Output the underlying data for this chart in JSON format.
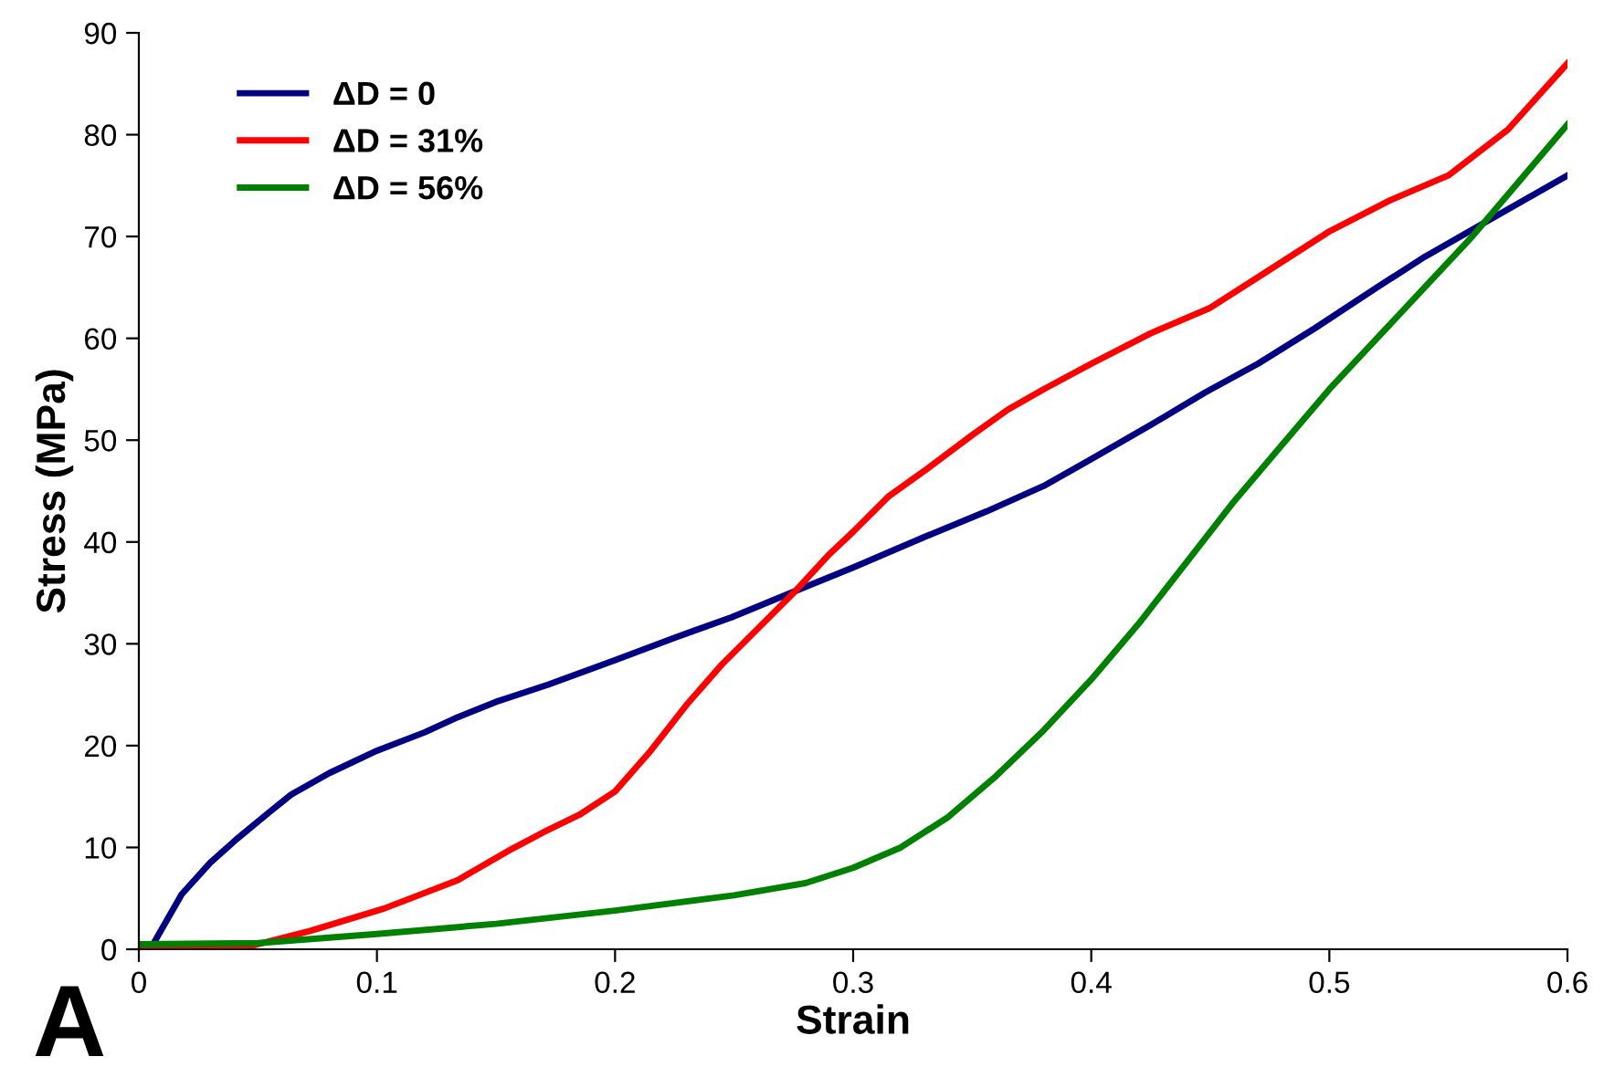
{
  "chart_data": {
    "type": "line",
    "xlabel": "Strain",
    "ylabel": "Stress (MPa)",
    "annotations": [
      "A"
    ],
    "xlim": [
      0,
      0.6
    ],
    "ylim": [
      0,
      90
    ],
    "xticks": [
      0,
      0.1,
      0.2,
      0.3,
      0.4,
      0.5,
      0.6
    ],
    "yticks": [
      0,
      10,
      20,
      30,
      40,
      50,
      60,
      70,
      80,
      90
    ],
    "grid": false,
    "legend": "top left",
    "marker": "none",
    "line_style": "solid",
    "series": [
      {
        "name": "ΔD = 0",
        "color": "#000080",
        "x": [
          0.006,
          0.018,
          0.03,
          0.041,
          0.055,
          0.064,
          0.08,
          0.099,
          0.12,
          0.134,
          0.15,
          0.172,
          0.2,
          0.225,
          0.249,
          0.279,
          0.3,
          0.33,
          0.356,
          0.38,
          0.402,
          0.425,
          0.448,
          0.47,
          0.494,
          0.52,
          0.54,
          0.57,
          0.6
        ],
        "values": [
          0.5,
          5.4,
          8.5,
          10.8,
          13.5,
          15.2,
          17.3,
          19.4,
          21.3,
          22.8,
          24.3,
          26,
          28.4,
          30.6,
          32.6,
          35.5,
          37.5,
          40.5,
          43,
          45.5,
          48.4,
          51.5,
          54.7,
          57.5,
          61,
          65,
          68,
          72,
          76
        ]
      },
      {
        "name": "ΔD = 31%",
        "color": "#ff0000",
        "x": [
          0,
          0.02,
          0.045,
          0.072,
          0.103,
          0.134,
          0.157,
          0.17,
          0.185,
          0.2,
          0.215,
          0.23,
          0.245,
          0.26,
          0.275,
          0.29,
          0.3,
          0.315,
          0.33,
          0.35,
          0.365,
          0.38,
          0.4,
          0.425,
          0.45,
          0.47,
          0.5,
          0.525,
          0.55,
          0.575,
          0.6
        ],
        "values": [
          0.3,
          0,
          0.2,
          1.8,
          4,
          6.8,
          9.9,
          11.5,
          13.2,
          15.5,
          19.5,
          24,
          28,
          31.5,
          35,
          38.8,
          41,
          44.5,
          47,
          50.5,
          53,
          55,
          57.5,
          60.5,
          63,
          66,
          70.5,
          73.5,
          76,
          80.5,
          87
        ]
      },
      {
        "name": "ΔD = 56%",
        "color": "#008000",
        "x": [
          0,
          0.05,
          0.1,
          0.15,
          0.2,
          0.25,
          0.28,
          0.3,
          0.32,
          0.34,
          0.36,
          0.38,
          0.4,
          0.42,
          0.44,
          0.46,
          0.48,
          0.5,
          0.52,
          0.54,
          0.56,
          0.58,
          0.6
        ],
        "values": [
          0.5,
          0.6,
          1.5,
          2.5,
          3.8,
          5.3,
          6.5,
          8,
          10,
          13,
          17,
          21.5,
          26.5,
          32,
          38,
          44,
          49.5,
          55,
          60,
          65,
          70,
          75.5,
          81
        ]
      }
    ]
  }
}
